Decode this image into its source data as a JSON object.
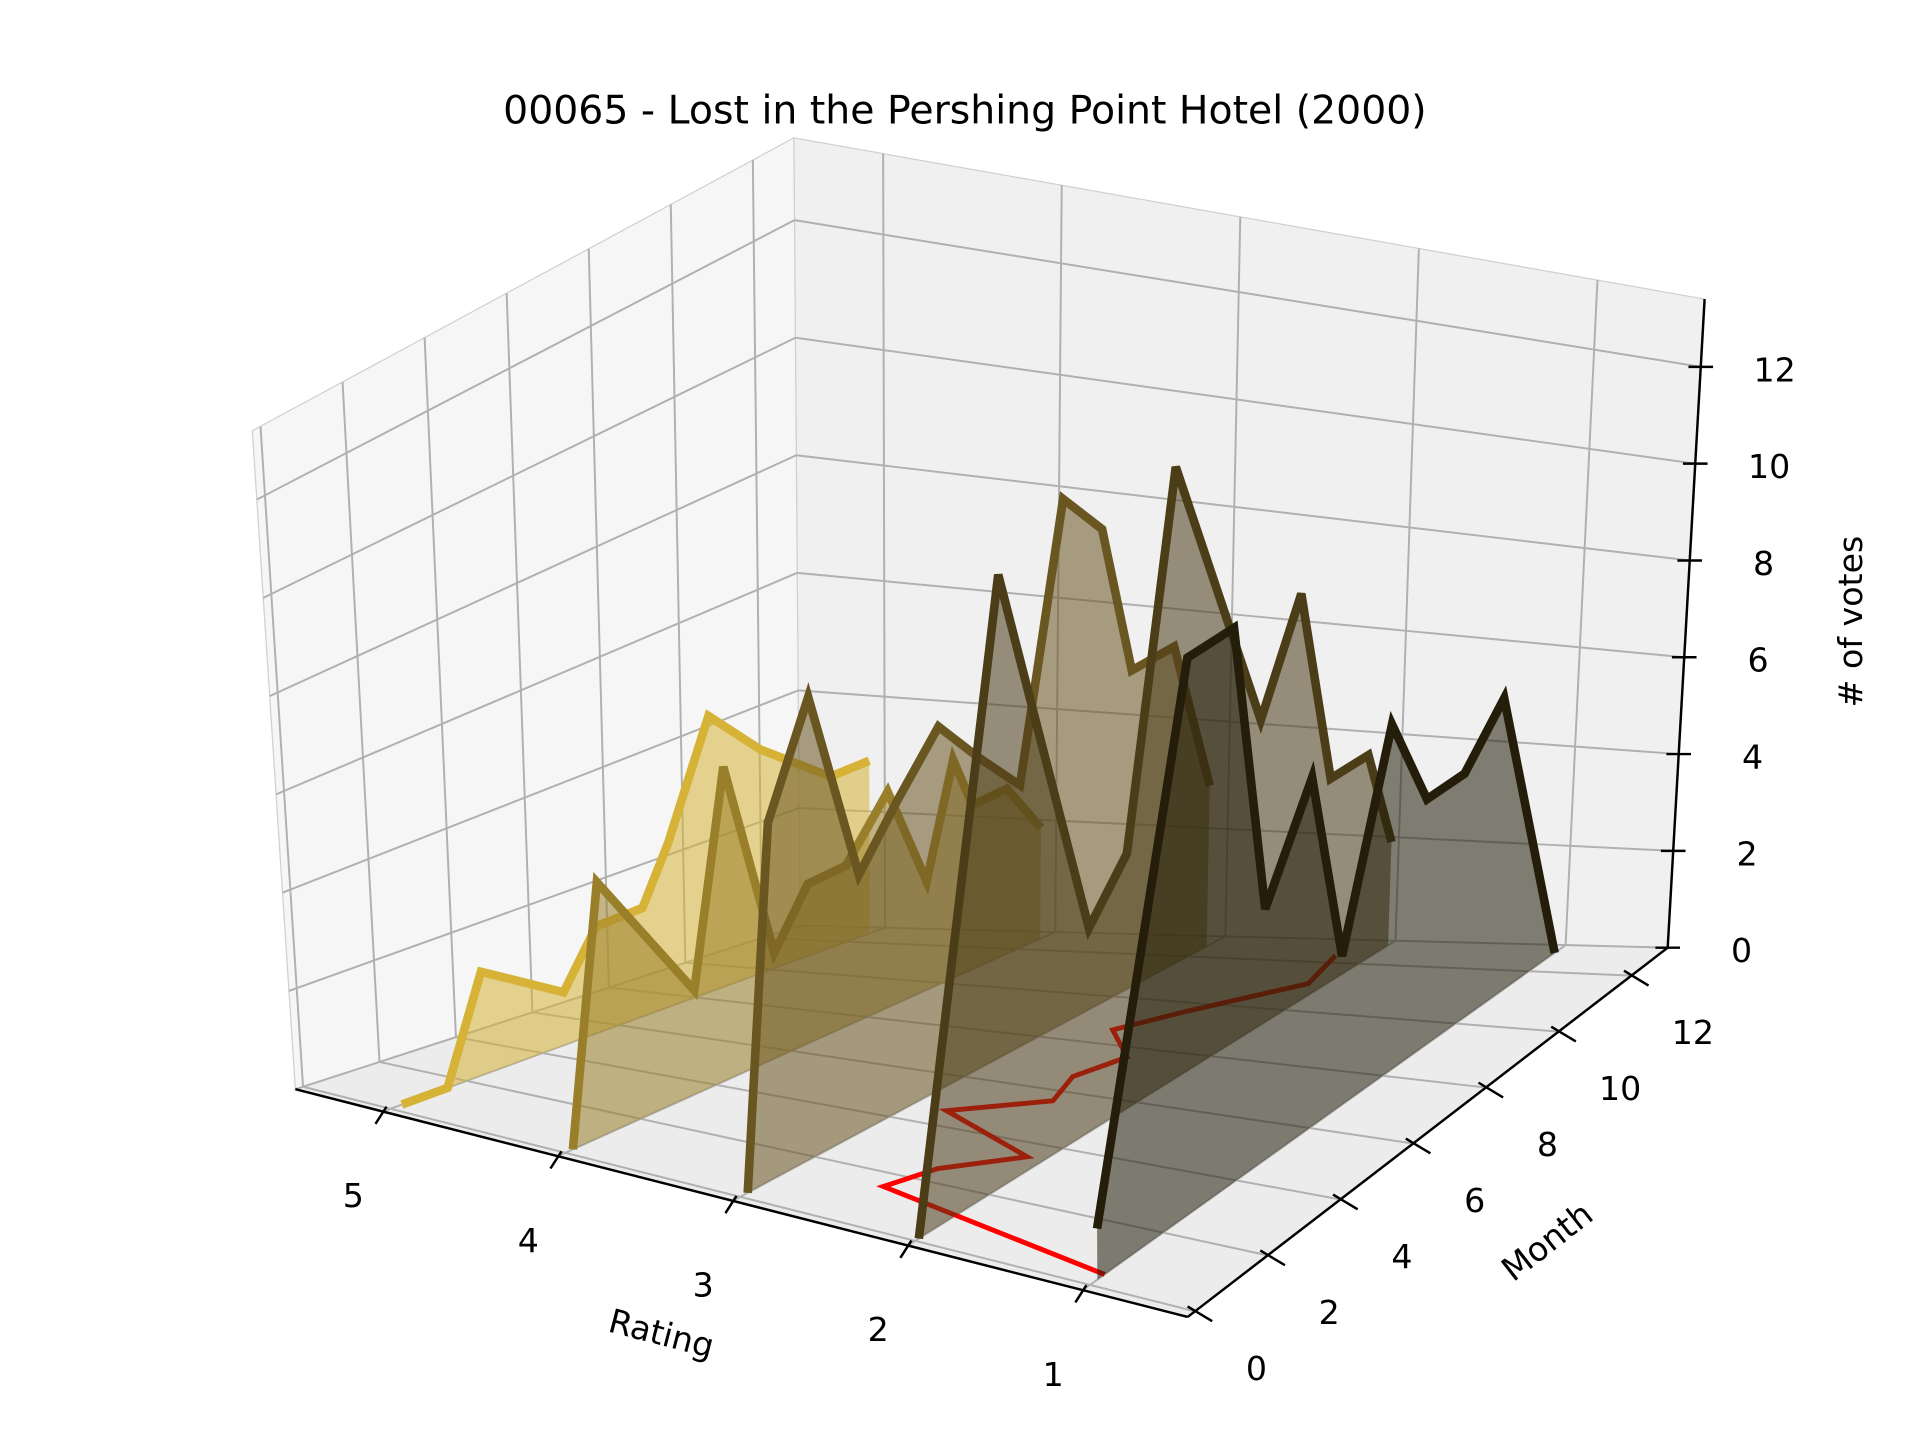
{
  "chart_data": {
    "type": "ribbon3d",
    "title": "00065 - Lost in the Pershing Point Hotel (2000)",
    "xlabel": "Rating",
    "ylabel": "Month",
    "zlabel": "# of votes",
    "xlim": [
      0.4,
      5.5
    ],
    "xticks": [
      1,
      2,
      3,
      4,
      5
    ],
    "ylim": [
      -0.2,
      13.0
    ],
    "yticks": [
      0,
      2,
      4,
      6,
      8,
      10,
      12
    ],
    "zlim": [
      0,
      13.4
    ],
    "zticks": [
      0,
      2,
      4,
      6,
      8,
      10,
      12
    ],
    "grid": true,
    "series": [
      {
        "rating": 5,
        "color": "#d6b236",
        "x": [
          0.3,
          1.5,
          2.5,
          4.6,
          5.5,
          6.7,
          7.4,
          8.5,
          9.8,
          11.6,
          12.6
        ],
        "values": [
          0,
          0,
          2,
          1,
          2,
          2,
          3,
          5,
          4,
          3,
          3
        ]
      },
      {
        "rating": 4,
        "color": "#9a7f2a",
        "x": [
          0.2,
          1.1,
          3.5,
          4.4,
          5.6,
          6.5,
          7.5,
          8.6,
          9.6,
          10.3,
          10.8,
          11.7,
          12.6
        ],
        "values": [
          0,
          5,
          2,
          6,
          2,
          3,
          3,
          4,
          2,
          4,
          3,
          3,
          2
        ]
      },
      {
        "rating": 3,
        "color": "#6a5620",
        "x": [
          0.2,
          1.0,
          2.1,
          3.3,
          4.3,
          5.4,
          6.4,
          7.5,
          8.6,
          9.6,
          10.4,
          11.5,
          12.5
        ],
        "values": [
          0,
          7,
          9,
          5,
          6,
          7,
          6,
          5,
          10,
          9,
          6,
          6,
          3
        ]
      },
      {
        "rating": 2,
        "color": "#4a3d18",
        "x": [
          0.1,
          2.4,
          4.7,
          5.7,
          6.9,
          9.2,
          10.2,
          11.1,
          12.1,
          12.8
        ],
        "values": [
          0,
          12,
          4,
          5,
          12,
          6,
          8,
          4,
          4,
          2
        ]
      },
      {
        "rating": 1,
        "color": "#231d0a",
        "x": [
          0.2,
          2.6,
          3.8,
          4.7,
          5.9,
          6.8,
          8.0,
          9.0,
          10.0,
          11.0,
          12.7
        ],
        "values": [
          1,
          11,
          11,
          5,
          7,
          3,
          7,
          5,
          5,
          6,
          0
        ]
      }
    ],
    "mean_line": {
      "color": "#ff0000",
      "x": [
        0.4,
        1.5,
        2.5,
        3.5,
        4.6,
        5.6,
        6.6,
        7.6,
        8.6,
        9.6,
        11.1,
        12.3
      ],
      "values": [
        1.0,
        2.5,
        2.4,
        2.1,
        2.8,
        2.4,
        2.5,
        2.4,
        2.7,
        2.5,
        2.1,
        2.2
      ]
    }
  }
}
